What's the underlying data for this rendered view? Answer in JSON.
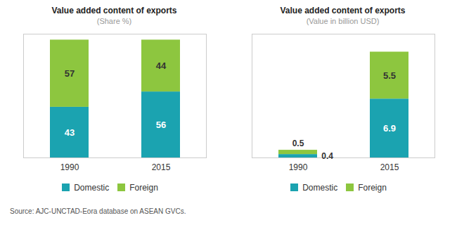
{
  "chart_data": [
    {
      "type": "bar",
      "stacked": true,
      "title": "Value added content of exports",
      "subtitle": "(Share %)",
      "categories": [
        "1990",
        "2015"
      ],
      "series": [
        {
          "name": "Domestic",
          "color": "#1ba3b0",
          "values": [
            43,
            56
          ]
        },
        {
          "name": "Foreign",
          "color": "#8dc63f",
          "values": [
            57,
            44
          ]
        }
      ],
      "ylim": [
        0,
        105
      ],
      "tick_labels": "x",
      "grid": false,
      "data_labels": true,
      "legend": "bottom",
      "annotations": [
        "Source:  AJC-UNCTAD-Eora database on ASEAN GVCs."
      ]
    },
    {
      "type": "bar",
      "stacked": true,
      "title": "Value added content of exports",
      "subtitle": "(Value in billion USD)",
      "categories": [
        "1990",
        "2015"
      ],
      "series": [
        {
          "name": "Domestic",
          "color": "#1ba3b0",
          "values": [
            0.4,
            6.9
          ]
        },
        {
          "name": "Foreign",
          "color": "#8dc63f",
          "values": [
            0.5,
            5.5
          ]
        }
      ],
      "ylim": [
        0,
        14.5
      ],
      "tick_labels": "x",
      "grid": false,
      "data_labels": true,
      "legend": "bottom"
    }
  ]
}
